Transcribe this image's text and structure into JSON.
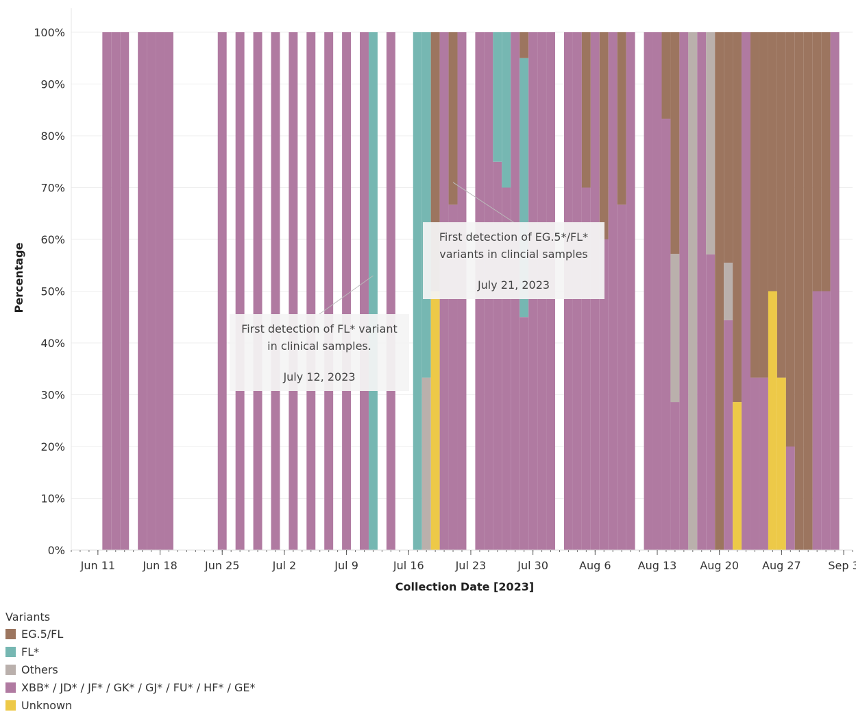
{
  "chart_data": {
    "type": "bar",
    "stacked": "100%",
    "title": "",
    "xlabel": "Collection Date [2023]",
    "ylabel": "Percentage",
    "ylim": [
      0,
      100
    ],
    "y_ticks": [
      "0%",
      "10%",
      "20%",
      "30%",
      "40%",
      "50%",
      "60%",
      "70%",
      "80%",
      "90%",
      "100%"
    ],
    "x_range": [
      "2023-06-08",
      "2023-09-04"
    ],
    "x_ticks": [
      {
        "label": "Jun 11",
        "date": "2023-06-11"
      },
      {
        "label": "Jun 18",
        "date": "2023-06-18"
      },
      {
        "label": "Jun 25",
        "date": "2023-06-25"
      },
      {
        "label": "Jul 2",
        "date": "2023-07-02"
      },
      {
        "label": "Jul 9",
        "date": "2023-07-09"
      },
      {
        "label": "Jul 16",
        "date": "2023-07-16"
      },
      {
        "label": "Jul 23",
        "date": "2023-07-23"
      },
      {
        "label": "Jul 30",
        "date": "2023-07-30"
      },
      {
        "label": "Aug 6",
        "date": "2023-08-06"
      },
      {
        "label": "Aug 13",
        "date": "2023-08-13"
      },
      {
        "label": "Aug 20",
        "date": "2023-08-20"
      },
      {
        "label": "Aug 27",
        "date": "2023-08-27"
      },
      {
        "label": "Sep 3",
        "date": "2023-09-03"
      }
    ],
    "grid": true,
    "legend_position": "bottom-left",
    "legend_title": "Variants",
    "series": [
      {
        "name": "XBB* / JD* / JF* / GK* / GJ* / FU* / HF* / GE*",
        "color": "#b07aa1"
      },
      {
        "name": "Unknown",
        "color": "#edc948"
      },
      {
        "name": "Others",
        "color": "#bab0ac"
      },
      {
        "name": "FL*",
        "color": "#76b7b2"
      },
      {
        "name": "EG.5/FL",
        "color": "#9c755f"
      }
    ],
    "legend_order": [
      "EG.5/FL",
      "FL*",
      "Others",
      "XBB* / JD* / JF* / GK* / GJ* / FU* / HF* / GE*",
      "Unknown"
    ],
    "data": [
      {
        "date": "2023-06-12",
        "values": [
          100,
          0,
          0,
          0,
          0
        ]
      },
      {
        "date": "2023-06-13",
        "values": [
          100,
          0,
          0,
          0,
          0
        ]
      },
      {
        "date": "2023-06-14",
        "values": [
          100,
          0,
          0,
          0,
          0
        ]
      },
      {
        "date": "2023-06-16",
        "values": [
          100,
          0,
          0,
          0,
          0
        ]
      },
      {
        "date": "2023-06-17",
        "values": [
          100,
          0,
          0,
          0,
          0
        ]
      },
      {
        "date": "2023-06-18",
        "values": [
          100,
          0,
          0,
          0,
          0
        ]
      },
      {
        "date": "2023-06-19",
        "values": [
          100,
          0,
          0,
          0,
          0
        ]
      },
      {
        "date": "2023-06-25",
        "values": [
          100,
          0,
          0,
          0,
          0
        ]
      },
      {
        "date": "2023-06-27",
        "values": [
          100,
          0,
          0,
          0,
          0
        ]
      },
      {
        "date": "2023-06-29",
        "values": [
          100,
          0,
          0,
          0,
          0
        ]
      },
      {
        "date": "2023-07-01",
        "values": [
          100,
          0,
          0,
          0,
          0
        ]
      },
      {
        "date": "2023-07-03",
        "values": [
          100,
          0,
          0,
          0,
          0
        ]
      },
      {
        "date": "2023-07-05",
        "values": [
          100,
          0,
          0,
          0,
          0
        ]
      },
      {
        "date": "2023-07-07",
        "values": [
          100,
          0,
          0,
          0,
          0
        ]
      },
      {
        "date": "2023-07-09",
        "values": [
          100,
          0,
          0,
          0,
          0
        ]
      },
      {
        "date": "2023-07-11",
        "values": [
          100,
          0,
          0,
          0,
          0
        ]
      },
      {
        "date": "2023-07-12",
        "values": [
          0,
          0,
          0,
          100,
          0
        ]
      },
      {
        "date": "2023-07-14",
        "values": [
          100,
          0,
          0,
          0,
          0
        ]
      },
      {
        "date": "2023-07-17",
        "values": [
          0,
          0,
          0,
          100,
          0
        ]
      },
      {
        "date": "2023-07-18",
        "values": [
          0,
          0,
          33.3,
          66.7,
          0
        ]
      },
      {
        "date": "2023-07-19",
        "values": [
          0,
          50,
          0,
          0,
          50
        ]
      },
      {
        "date": "2023-07-20",
        "values": [
          100,
          0,
          0,
          0,
          0
        ]
      },
      {
        "date": "2023-07-21",
        "values": [
          66.7,
          0,
          0,
          0,
          33.3
        ]
      },
      {
        "date": "2023-07-22",
        "values": [
          100,
          0,
          0,
          0,
          0
        ]
      },
      {
        "date": "2023-07-24",
        "values": [
          100,
          0,
          0,
          0,
          0
        ]
      },
      {
        "date": "2023-07-25",
        "values": [
          100,
          0,
          0,
          0,
          0
        ]
      },
      {
        "date": "2023-07-26",
        "values": [
          75,
          0,
          0,
          25,
          0
        ]
      },
      {
        "date": "2023-07-27",
        "values": [
          70,
          0,
          0,
          30,
          0
        ]
      },
      {
        "date": "2023-07-28",
        "values": [
          100,
          0,
          0,
          0,
          0
        ]
      },
      {
        "date": "2023-07-29",
        "values": [
          45,
          0,
          0,
          50,
          5
        ]
      },
      {
        "date": "2023-07-30",
        "values": [
          100,
          0,
          0,
          0,
          0
        ]
      },
      {
        "date": "2023-07-31",
        "values": [
          100,
          0,
          0,
          0,
          0
        ]
      },
      {
        "date": "2023-08-01",
        "values": [
          100,
          0,
          0,
          0,
          0
        ]
      },
      {
        "date": "2023-08-03",
        "values": [
          100,
          0,
          0,
          0,
          0
        ]
      },
      {
        "date": "2023-08-04",
        "values": [
          100,
          0,
          0,
          0,
          0
        ]
      },
      {
        "date": "2023-08-05",
        "values": [
          70,
          0,
          0,
          0,
          30
        ]
      },
      {
        "date": "2023-08-06",
        "values": [
          100,
          0,
          0,
          0,
          0
        ]
      },
      {
        "date": "2023-08-07",
        "values": [
          60,
          0,
          0,
          0,
          40
        ]
      },
      {
        "date": "2023-08-08",
        "values": [
          100,
          0,
          0,
          0,
          0
        ]
      },
      {
        "date": "2023-08-09",
        "values": [
          66.7,
          0,
          0,
          0,
          33.3
        ]
      },
      {
        "date": "2023-08-10",
        "values": [
          100,
          0,
          0,
          0,
          0
        ]
      },
      {
        "date": "2023-08-12",
        "values": [
          100,
          0,
          0,
          0,
          0
        ]
      },
      {
        "date": "2023-08-13",
        "values": [
          100,
          0,
          0,
          0,
          0
        ]
      },
      {
        "date": "2023-08-14",
        "values": [
          83.3,
          0,
          0,
          0,
          16.7
        ]
      },
      {
        "date": "2023-08-15",
        "values": [
          28.6,
          0,
          28.6,
          0,
          42.8
        ]
      },
      {
        "date": "2023-08-16",
        "values": [
          100,
          0,
          0,
          0,
          0
        ]
      },
      {
        "date": "2023-08-17",
        "values": [
          0,
          0,
          100,
          0,
          0
        ]
      },
      {
        "date": "2023-08-18",
        "values": [
          100,
          0,
          0,
          0,
          0
        ]
      },
      {
        "date": "2023-08-19",
        "values": [
          57.1,
          0,
          42.9,
          0,
          0
        ]
      },
      {
        "date": "2023-08-20",
        "values": [
          0,
          0,
          0,
          0,
          100
        ]
      },
      {
        "date": "2023-08-21",
        "values": [
          44.4,
          0,
          11.1,
          0,
          44.5
        ]
      },
      {
        "date": "2023-08-22",
        "values": [
          0,
          28.6,
          0,
          0,
          71.4
        ]
      },
      {
        "date": "2023-08-23",
        "values": [
          100,
          0,
          0,
          0,
          0
        ]
      },
      {
        "date": "2023-08-24",
        "values": [
          33.3,
          0,
          0,
          0,
          66.7
        ]
      },
      {
        "date": "2023-08-25",
        "values": [
          33.3,
          0,
          0,
          0,
          66.7
        ]
      },
      {
        "date": "2023-08-26",
        "values": [
          0,
          50,
          0,
          0,
          50
        ]
      },
      {
        "date": "2023-08-27",
        "values": [
          0,
          33.3,
          0,
          0,
          66.7
        ]
      },
      {
        "date": "2023-08-28",
        "values": [
          20,
          0,
          0,
          0,
          80
        ]
      },
      {
        "date": "2023-08-29",
        "values": [
          0,
          0,
          0,
          0,
          100
        ]
      },
      {
        "date": "2023-08-30",
        "values": [
          0,
          0,
          0,
          0,
          100
        ]
      },
      {
        "date": "2023-08-31",
        "values": [
          50,
          0,
          0,
          0,
          50
        ]
      },
      {
        "date": "2023-09-01",
        "values": [
          50,
          0,
          0,
          0,
          50
        ]
      },
      {
        "date": "2023-09-02",
        "values": [
          100,
          0,
          0,
          0,
          0
        ]
      }
    ],
    "annotations": [
      {
        "lines": [
          "First detection of FL* variant",
          "in clinical samples."
        ],
        "date_text": "July 12, 2023",
        "target_date": "2023-07-12",
        "target_value": 53
      },
      {
        "lines": [
          "First detection of EG.5*/FL*",
          "variants in clincial samples"
        ],
        "date_text": "July 21, 2023",
        "target_date": "2023-07-21",
        "target_value": 71
      }
    ]
  }
}
